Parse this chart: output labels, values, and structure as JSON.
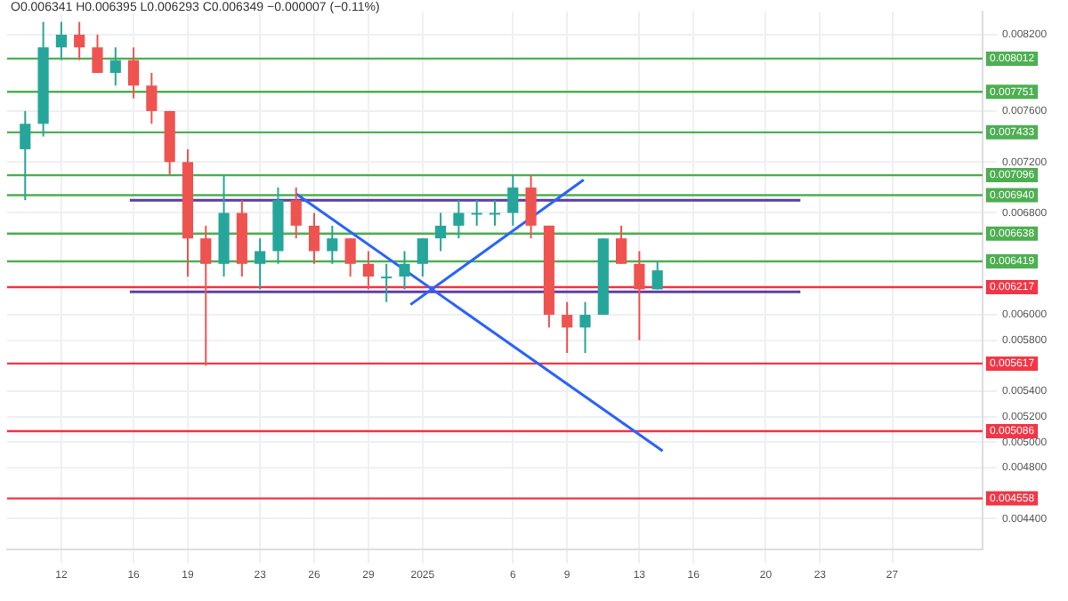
{
  "chart_data": {
    "type": "candlestick",
    "title": "O0.006341 H0.006395 L0.006293 C0.006349 −0.000007 (−0.11%)",
    "x": [
      "2024-12-10",
      "2024-12-11",
      "2024-12-12",
      "2024-12-13",
      "2024-12-14",
      "2024-12-15",
      "2024-12-16",
      "2024-12-17",
      "2024-12-18",
      "2024-12-19",
      "2024-12-20",
      "2024-12-21",
      "2024-12-22",
      "2024-12-23",
      "2024-12-24",
      "2024-12-25",
      "2024-12-26",
      "2024-12-27",
      "2024-12-28",
      "2024-12-29",
      "2024-12-30",
      "2024-12-31",
      "2025-01-01",
      "2025-01-02",
      "2025-01-03",
      "2025-01-04",
      "2025-01-05",
      "2025-01-06",
      "2025-01-07",
      "2025-01-08",
      "2025-01-09",
      "2025-01-10",
      "2025-01-11",
      "2025-01-12",
      "2025-01-13",
      "2025-01-14"
    ],
    "ohlc": [
      [
        0.0073,
        0.0076,
        0.0069,
        0.0075
      ],
      [
        0.0075,
        0.0083,
        0.0074,
        0.0081
      ],
      [
        0.0081,
        0.0083,
        0.008,
        0.0082
      ],
      [
        0.0082,
        0.0083,
        0.008,
        0.0081
      ],
      [
        0.0081,
        0.0082,
        0.0079,
        0.0079
      ],
      [
        0.0079,
        0.0081,
        0.0078,
        0.008
      ],
      [
        0.008,
        0.0081,
        0.0077,
        0.0078
      ],
      [
        0.0078,
        0.0079,
        0.0075,
        0.0076
      ],
      [
        0.0076,
        0.0076,
        0.0071,
        0.0072
      ],
      [
        0.0072,
        0.0073,
        0.0063,
        0.0066
      ],
      [
        0.0066,
        0.0067,
        0.0056,
        0.0064
      ],
      [
        0.0064,
        0.0071,
        0.0063,
        0.0068
      ],
      [
        0.0068,
        0.0069,
        0.0063,
        0.0064
      ],
      [
        0.0064,
        0.0066,
        0.0062,
        0.0065
      ],
      [
        0.0065,
        0.007,
        0.0064,
        0.0069
      ],
      [
        0.0069,
        0.007,
        0.0066,
        0.0067
      ],
      [
        0.0067,
        0.0068,
        0.0064,
        0.0065
      ],
      [
        0.0065,
        0.0067,
        0.0064,
        0.0066
      ],
      [
        0.0066,
        0.0066,
        0.0063,
        0.0064
      ],
      [
        0.0064,
        0.0065,
        0.0062,
        0.0063
      ],
      [
        0.0063,
        0.0064,
        0.0061,
        0.0063
      ],
      [
        0.0063,
        0.0065,
        0.0062,
        0.0064
      ],
      [
        0.0064,
        0.0066,
        0.0063,
        0.0066
      ],
      [
        0.0066,
        0.0068,
        0.0065,
        0.0067
      ],
      [
        0.0067,
        0.0069,
        0.0066,
        0.0068
      ],
      [
        0.0068,
        0.0069,
        0.0067,
        0.0068
      ],
      [
        0.0068,
        0.0069,
        0.0067,
        0.0068
      ],
      [
        0.0068,
        0.0071,
        0.0067,
        0.007
      ],
      [
        0.007,
        0.0071,
        0.0066,
        0.0067
      ],
      [
        0.0067,
        0.0067,
        0.0059,
        0.006
      ],
      [
        0.006,
        0.0061,
        0.0057,
        0.0059
      ],
      [
        0.0059,
        0.0061,
        0.0057,
        0.006
      ],
      [
        0.006,
        0.0066,
        0.006,
        0.0066
      ],
      [
        0.0066,
        0.0067,
        0.0064,
        0.0064
      ],
      [
        0.0064,
        0.0065,
        0.0058,
        0.0062
      ],
      [
        0.0062,
        0.006419,
        0.0062,
        0.006349
      ]
    ],
    "colors": [
      "#26a69a",
      "#26a69a",
      "#26a69a",
      "#ef5350",
      "#ef5350",
      "#26a69a",
      "#ef5350",
      "#ef5350",
      "#ef5350",
      "#ef5350",
      "#ef5350",
      "#26a69a",
      "#ef5350",
      "#26a69a",
      "#26a69a",
      "#ef5350",
      "#ef5350",
      "#26a69a",
      "#ef5350",
      "#ef5350",
      "#26a69a",
      "#26a69a",
      "#26a69a",
      "#26a69a",
      "#26a69a",
      "#26a69a",
      "#26a69a",
      "#26a69a",
      "#ef5350",
      "#ef5350",
      "#ef5350",
      "#26a69a",
      "#26a69a",
      "#ef5350",
      "#ef5350",
      "#26a69a"
    ],
    "series": [
      {
        "type": "line",
        "color": "#2962ff",
        "x": [
          "2024-12-25T00:00",
          "2025-01-14T07:00"
        ],
        "values": [
          0.00695,
          0.00493
        ]
      },
      {
        "type": "line",
        "color": "#2962ff",
        "x": [
          "2024-12-31T08:00",
          "2025-01-09T22:00"
        ],
        "values": [
          0.00608,
          0.00706
        ]
      },
      {
        "type": "line",
        "color": "#5b3fa8",
        "x": [
          "2024-12-15T19:00",
          "2025-01-21T22:00"
        ],
        "values": [
          0.0069,
          0.0069
        ]
      },
      {
        "type": "line",
        "color": "#5b3fa8",
        "x": [
          "2024-12-15T19:00",
          "2025-01-21T22:00"
        ],
        "values": [
          0.00618,
          0.00618
        ]
      }
    ],
    "xlim": [
      "2024-12-09T00:00",
      "2025-02-01T00:00"
    ],
    "xticks": [
      {
        "value": "2024-12-12",
        "label": "12"
      },
      {
        "value": "2024-12-16",
        "label": "16"
      },
      {
        "value": "2024-12-19",
        "label": "19"
      },
      {
        "value": "2024-12-23",
        "label": "23"
      },
      {
        "value": "2024-12-26",
        "label": "26"
      },
      {
        "value": "2024-12-29",
        "label": "29"
      },
      {
        "value": "2025-01-01",
        "label": "2025"
      },
      {
        "value": "2025-01-06",
        "label": "6"
      },
      {
        "value": "2025-01-09",
        "label": "9"
      },
      {
        "value": "2025-01-13",
        "label": "13"
      },
      {
        "value": "2025-01-16",
        "label": "16"
      },
      {
        "value": "2025-01-20",
        "label": "20"
      },
      {
        "value": "2025-01-23",
        "label": "23"
      },
      {
        "value": "2025-01-27",
        "label": "27"
      }
    ],
    "ylim": [
      0.00416,
      0.00838
    ],
    "yticks": [
      {
        "value": 0.0044,
        "label": "0.004400"
      },
      {
        "value": 0.0048,
        "label": "0.004800"
      },
      {
        "value": 0.005,
        "label": "0.005000"
      },
      {
        "value": 0.0052,
        "label": "0.005200"
      },
      {
        "value": 0.0054,
        "label": "0.005400"
      },
      {
        "value": 0.0058,
        "label": "0.005800"
      },
      {
        "value": 0.006,
        "label": "0.006000"
      },
      {
        "value": 0.0068,
        "label": "0.006800"
      },
      {
        "value": 0.0072,
        "label": "0.007200"
      },
      {
        "value": 0.0076,
        "label": "0.007600"
      },
      {
        "value": 0.0082,
        "label": "0.008200"
      }
    ],
    "ref_lines": [
      {
        "axis": "y",
        "value": 0.008012,
        "label": "0.008012",
        "color": "#4caf50"
      },
      {
        "axis": "y",
        "value": 0.007751,
        "label": "0.007751",
        "color": "#4caf50"
      },
      {
        "axis": "y",
        "value": 0.007433,
        "label": "0.007433",
        "color": "#4caf50"
      },
      {
        "axis": "y",
        "value": 0.007096,
        "label": "0.007096",
        "color": "#4caf50"
      },
      {
        "axis": "y",
        "value": 0.00694,
        "label": "0.006940",
        "color": "#4caf50"
      },
      {
        "axis": "y",
        "value": 0.006638,
        "label": "0.006638",
        "color": "#4caf50"
      },
      {
        "axis": "y",
        "value": 0.006419,
        "label": "0.006419",
        "color": "#4caf50"
      },
      {
        "axis": "y",
        "value": 0.006217,
        "label": "0.006217",
        "color": "#f23645"
      },
      {
        "axis": "y",
        "value": 0.005617,
        "label": "0.005617",
        "color": "#f23645"
      },
      {
        "axis": "y",
        "value": 0.005086,
        "label": "0.005086",
        "color": "#f23645"
      },
      {
        "axis": "y",
        "value": 0.004558,
        "label": "0.004558",
        "color": "#f23645"
      }
    ],
    "grid": true,
    "legend": false
  }
}
